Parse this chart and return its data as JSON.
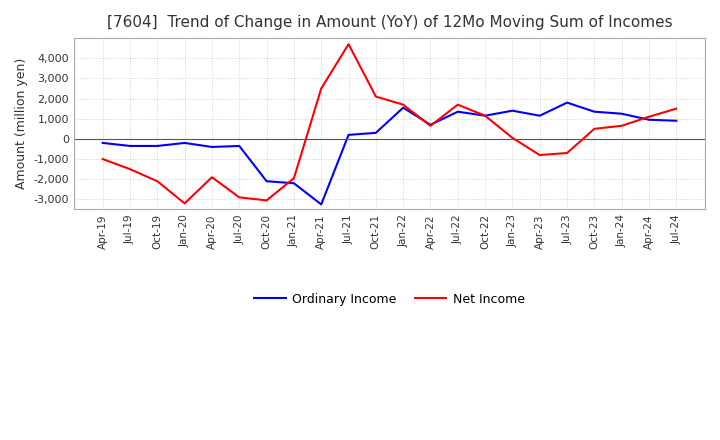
{
  "title": "[7604]  Trend of Change in Amount (YoY) of 12Mo Moving Sum of Incomes",
  "ylabel": "Amount (million yen)",
  "ylim": [
    -3500,
    5000
  ],
  "yticks": [
    -3000,
    -2000,
    -1000,
    0,
    1000,
    2000,
    3000,
    4000
  ],
  "background_color": "#ffffff",
  "grid_color": "#aaaaaa",
  "ordinary_income_color": "#0000ff",
  "net_income_color": "#ff0000",
  "x_labels": [
    "Apr-19",
    "Jul-19",
    "Oct-19",
    "Jan-20",
    "Apr-20",
    "Jul-20",
    "Oct-20",
    "Jan-21",
    "Apr-21",
    "Jul-21",
    "Oct-21",
    "Jan-22",
    "Apr-22",
    "Jul-22",
    "Oct-22",
    "Jan-23",
    "Apr-23",
    "Jul-23",
    "Oct-23",
    "Jan-24",
    "Apr-24",
    "Jul-24"
  ],
  "ordinary_income": [
    -200,
    -350,
    -350,
    -200,
    -400,
    -350,
    -2100,
    -2200,
    -3250,
    200,
    300,
    1550,
    700,
    1350,
    1150,
    1400,
    1150,
    1800,
    1350,
    1250,
    950,
    900
  ],
  "net_income": [
    -1000,
    -1500,
    -2100,
    -3200,
    -1900,
    -2900,
    -3050,
    -1950,
    2500,
    4700,
    2100,
    1700,
    650,
    1700,
    1150,
    50,
    -800,
    -700,
    500,
    650,
    1100,
    1500
  ]
}
